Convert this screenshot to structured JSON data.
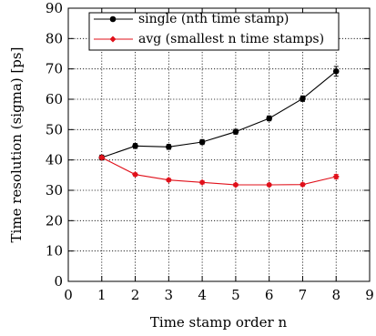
{
  "chart_data": {
    "type": "line",
    "xlabel": "Time stamp order n",
    "ylabel": "Time resolution (sigma) [ps]",
    "xlim": [
      0,
      9
    ],
    "ylim": [
      0,
      90
    ],
    "xticks": [
      0,
      1,
      2,
      3,
      4,
      5,
      6,
      7,
      8,
      9
    ],
    "yticks": [
      0,
      10,
      20,
      30,
      40,
      50,
      60,
      70,
      80,
      90
    ],
    "grid": true,
    "legend_position": "top-right",
    "series": [
      {
        "name": "single (nth time stamp)",
        "color": "#000000",
        "marker": "circle",
        "x": [
          1,
          2,
          3,
          4,
          5,
          6,
          7,
          8
        ],
        "y": [
          40.8,
          44.6,
          44.3,
          45.9,
          49.3,
          53.7,
          60.2,
          69.2
        ],
        "yerr": [
          0.8,
          0.8,
          0.8,
          0.8,
          0.8,
          0.8,
          0.9,
          1.6
        ]
      },
      {
        "name": "avg (smallest n time stamps)",
        "color": "#e0101a",
        "marker": "diamond",
        "x": [
          1,
          2,
          3,
          4,
          5,
          6,
          7,
          8
        ],
        "y": [
          40.8,
          35.2,
          33.4,
          32.6,
          31.8,
          31.8,
          31.9,
          34.5
        ],
        "yerr": [
          0.5,
          0.5,
          0.5,
          0.5,
          0.5,
          0.5,
          0.5,
          0.7
        ]
      }
    ]
  }
}
